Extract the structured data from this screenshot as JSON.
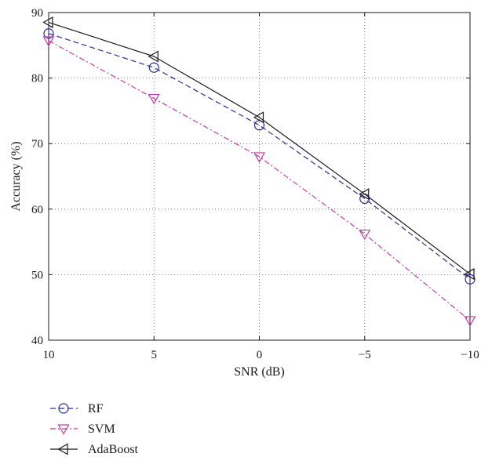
{
  "chart_data": {
    "type": "line",
    "x": [
      10,
      5,
      0,
      -5,
      -10
    ],
    "xticks": [
      "10",
      "5",
      "0",
      "−5",
      "−10"
    ],
    "yticks": [
      "40",
      "50",
      "60",
      "70",
      "80",
      "90"
    ],
    "xlim": [
      10,
      -10
    ],
    "ylim": [
      40,
      90
    ],
    "xlabel": "SNR (dB)",
    "ylabel": "Accuracy (%)",
    "grid": true,
    "legend_position": "bottom-left, below plot",
    "series": [
      {
        "name": "RF",
        "values": [
          86.8,
          81.6,
          72.8,
          61.6,
          49.3
        ],
        "color": "#2a2a9a",
        "dash": "dashed",
        "marker": "circle"
      },
      {
        "name": "SVM",
        "values": [
          85.7,
          76.9,
          68.0,
          56.2,
          43.0
        ],
        "color": "#c43ca8",
        "dash": "dash-dot",
        "marker": "triangle-down"
      },
      {
        "name": "AdaBoost",
        "values": [
          88.5,
          83.3,
          74.0,
          62.3,
          50.1
        ],
        "color": "#1a1a1a",
        "dash": "solid",
        "marker": "triangle-left"
      }
    ]
  }
}
